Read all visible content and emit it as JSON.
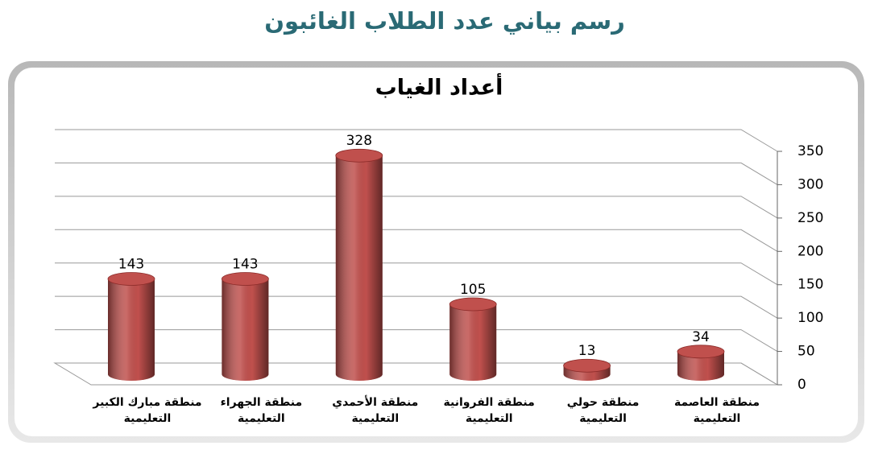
{
  "page_title": "رسم بياني عدد الطلاب الغائبون",
  "chart_data": {
    "type": "bar",
    "title": "أعداد الغياب",
    "categories": [
      "منطقة مبارك الكبير التعليمية",
      "منطقة الجهراء التعليمية",
      "منطقة الأحمدي التعليمية",
      "منطقة الفروانية التعليمية",
      "منطقة حولي التعليمية",
      "منطقة العاصمة التعليمية"
    ],
    "values": [
      143,
      143,
      328,
      105,
      13,
      34
    ],
    "color": "#c0504d",
    "ylim": [
      0,
      350
    ],
    "yticks": [
      0,
      50,
      100,
      150,
      200,
      250,
      300,
      350
    ],
    "grid": true,
    "y_axis_side": "right"
  }
}
